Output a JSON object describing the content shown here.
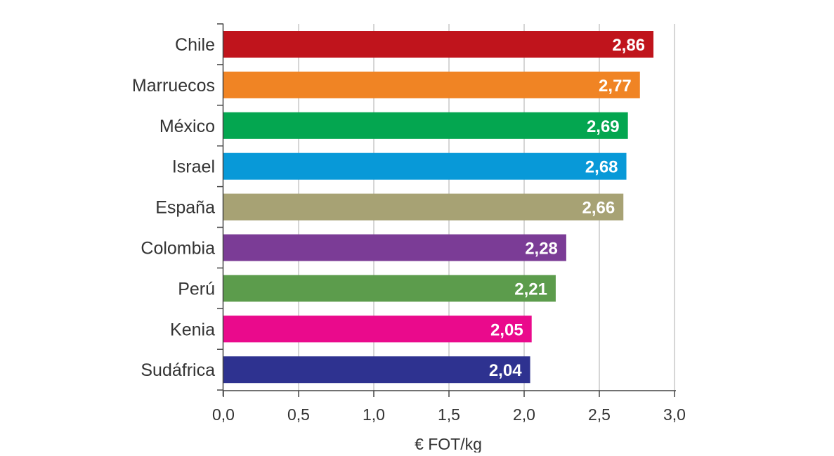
{
  "chart_data": {
    "type": "bar",
    "orientation": "horizontal",
    "title": "",
    "xlabel": "€ FOT/kg",
    "ylabel": "",
    "xlim": [
      0,
      3
    ],
    "grid": true,
    "categories": [
      "Chile",
      "Marruecos",
      "México",
      "Israel",
      "España",
      "Colombia",
      "Perú",
      "Kenia",
      "Sudáfrica"
    ],
    "values": [
      2.86,
      2.77,
      2.69,
      2.68,
      2.66,
      2.28,
      2.21,
      2.05,
      2.04
    ],
    "value_labels": [
      "2,86",
      "2,77",
      "2,69",
      "2,68",
      "2,66",
      "2,28",
      "2,21",
      "2,05",
      "2,04"
    ],
    "colors": [
      "#c0141c",
      "#f08424",
      "#04a650",
      "#0899d8",
      "#a7a274",
      "#7b3c96",
      "#5c9c4c",
      "#ea0a8c",
      "#2e3290"
    ],
    "ticks": [
      0,
      0.5,
      1,
      1.5,
      2,
      2.5,
      3
    ],
    "tick_labels": [
      "0,0",
      "0,5",
      "1,0",
      "1,5",
      "2,0",
      "2,5",
      "3,0"
    ]
  }
}
